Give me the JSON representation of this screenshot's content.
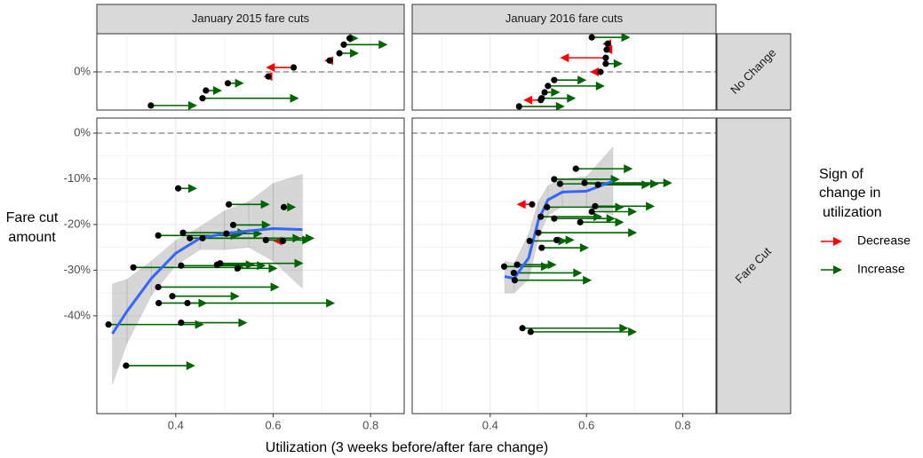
{
  "chart_data": {
    "type": "arrow",
    "x_label": "Utilization (3 weeks before/after fare change)",
    "y_label": [
      "Fare cut",
      "amount"
    ],
    "legend_title": [
      "Sign of",
      "change in",
      "utilization"
    ],
    "series": [
      {
        "name": "Decrease",
        "color": "#ff0000"
      },
      {
        "name": "Increase",
        "color": "#006400"
      }
    ],
    "columns": [
      "January 2015 fare cuts",
      "January 2016 fare cuts"
    ],
    "rows": [
      "No Change",
      "Fare Cut"
    ],
    "xlim": [
      0.238,
      0.869
    ],
    "xticks": [
      0.4,
      0.6,
      0.8
    ],
    "ref_line": 0,
    "fit_color": "#3366ff",
    "panels": [
      {
        "column": 0,
        "row": 0,
        "ylim": [
          -8.4,
          8.4
        ],
        "yticks": [
          {
            "value": 0,
            "label": "0%"
          }
        ],
        "arrows": [
          {
            "x_start": [
              0.642,
              0.59,
              0.716
            ],
            "x_end": [
              0.585,
              0.58,
              0.705
            ],
            "y": [
              0.97,
              -1,
              2.5
            ]
          },
          {
            "x_start": [
              0.757,
              0.745,
              0.736,
              0.507,
              0.462,
              0.455,
              0.349
            ],
            "x_end": [
              0.775,
              0.835,
              0.776,
              0.54,
              0.495,
              0.653,
              0.444
            ],
            "y": [
              7.4,
              6.0,
              4.1,
              -2.5,
              -4.1,
              -5.8,
              -7.4
            ]
          }
        ]
      },
      {
        "column": 1,
        "row": 0,
        "ylim": [
          -8.4,
          8.4
        ],
        "yticks": [
          {
            "value": 0,
            "label": "0%"
          }
        ],
        "arrows": [
          {
            "x_start": [
              0.644,
              0.642,
              0.64,
              0.629,
              0.505
            ],
            "x_end": [
              0.633,
              0.635,
              0.545,
              0.607,
              0.469
            ],
            "y": [
              6.2,
              4.9,
              3.1,
              0,
              -6.2
            ]
          },
          {
            "x_start": [
              0.611,
              0.64,
              0.533,
              0.52,
              0.513,
              0.507,
              0.46
            ],
            "x_end": [
              0.691,
              0.675,
              0.6,
              0.638,
              0.545,
              0.578,
              0.555
            ],
            "y": [
              7.6,
              1.8,
              -1.8,
              -3.1,
              -4.5,
              -5.8,
              -7.6
            ]
          }
        ]
      },
      {
        "column": 0,
        "row": 1,
        "ylim": [
          -61.4,
          3.3
        ],
        "yticks": [
          {
            "value": 0,
            "label": "0%"
          },
          {
            "value": -10,
            "label": "-10%"
          },
          {
            "value": -20,
            "label": "-20%"
          },
          {
            "value": -30,
            "label": "-30%"
          },
          {
            "value": -40,
            "label": "-40%"
          }
        ],
        "arrows": [
          {
            "x_start": [
              0.62
            ],
            "x_end": [
              0.6
            ],
            "y": [
              -23.6
            ]
          },
          {
            "x_start": [
              0.405,
              0.509,
              0.622,
              0.518,
              0.504,
              0.415,
              0.364,
              0.455,
              0.429,
              0.585,
              0.491,
              0.411,
              0.313,
              0.527,
              0.485,
              0.364,
              0.393,
              0.365,
              0.424,
              0.411,
              0.262,
              0.298
            ],
            "x_end": [
              0.444,
              0.593,
              0.647,
              0.595,
              0.578,
              0.545,
              0.531,
              0.658,
              0.685,
              0.678,
              0.662,
              0.585,
              0.54,
              0.609,
              0.562,
              0.613,
              0.531,
              0.465,
              0.727,
              0.547,
              0.458,
              0.44
            ],
            "y": [
              -12.1,
              -15.6,
              -16.2,
              -20.1,
              -22,
              -21.8,
              -22.4,
              -23,
              -23,
              -23.4,
              -28.5,
              -29,
              -29.4,
              -29.6,
              -28.8,
              -33.7,
              -35.7,
              -37.2,
              -37.2,
              -41.5,
              -41.9,
              -50.9
            ]
          }
        ],
        "fit": {
          "x": [
            0.27,
            0.3,
            0.35,
            0.4,
            0.45,
            0.5,
            0.55,
            0.6,
            0.66
          ],
          "y": [
            -43.9,
            -39,
            -31.8,
            -26.3,
            -23,
            -22,
            -21.4,
            -20.9,
            -21.1
          ],
          "lower": [
            -55,
            -46,
            -35.5,
            -29,
            -25.5,
            -25.5,
            -25,
            -28,
            -34
          ],
          "upper": [
            -33,
            -32,
            -28,
            -23.5,
            -20.5,
            -17,
            -15,
            -11,
            -9
          ]
        }
      },
      {
        "column": 1,
        "row": 1,
        "ylim": [
          -61.4,
          3.3
        ],
        "yticks": [
          {
            "value": 0,
            "label": "0%"
          },
          {
            "value": -10,
            "label": "-10%"
          },
          {
            "value": -20,
            "label": "-20%"
          },
          {
            "value": -30,
            "label": "-30%"
          },
          {
            "value": -40,
            "label": "-40%"
          }
        ],
        "arrows": [
          {
            "x_start": [
              0.487
            ],
            "x_end": [
              0.455
            ],
            "y": [
              -15.6
            ]
          },
          {
            "x_start": [
              0.578,
              0.533,
              0.596,
              0.624,
              0.545,
              0.518,
              0.618,
              0.611,
              0.505,
              0.533,
              0.587,
              0.5,
              0.538,
              0.482,
              0.507,
              0.456,
              0.429,
              0.449,
              0.451,
              0.467,
              0.484
            ],
            "x_end": [
              0.696,
              0.669,
              0.778,
              0.733,
              0.751,
              0.678,
              0.742,
              0.705,
              0.633,
              0.66,
              0.678,
              0.705,
              0.575,
              0.56,
              0.605,
              0.538,
              0.524,
              0.591,
              0.611,
              0.687,
              0.705
            ],
            "y": [
              -7.8,
              -10.1,
              -10.9,
              -11.3,
              -11.1,
              -16.2,
              -16,
              -17.2,
              -18.3,
              -18.7,
              -19.5,
              -21.8,
              -23.4,
              -23.6,
              -25.1,
              -28.8,
              -29.2,
              -30.6,
              -32.2,
              -42.7,
              -43.5
            ]
          }
        ],
        "fit": {
          "x": [
            0.43,
            0.45,
            0.48,
            0.5,
            0.52,
            0.55,
            0.6,
            0.655
          ],
          "y": [
            -31.4,
            -31.8,
            -27.3,
            -19.1,
            -14.6,
            -12.9,
            -12.7,
            -10.5
          ],
          "lower": [
            -35,
            -35,
            -32,
            -23,
            -18,
            -16,
            -16,
            -18
          ],
          "upper": [
            -28,
            -28.5,
            -22,
            -15,
            -11.5,
            -10,
            -9.5,
            -3
          ]
        }
      }
    ]
  }
}
